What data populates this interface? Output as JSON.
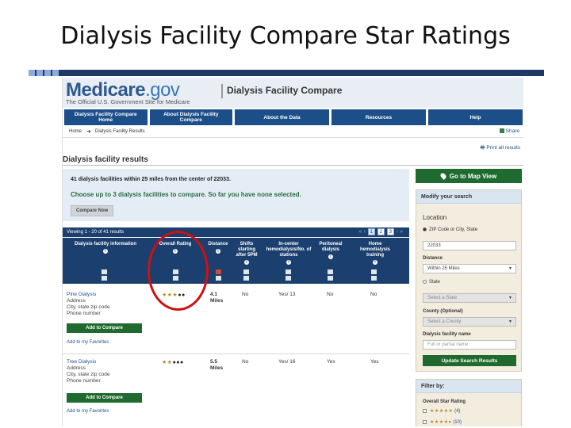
{
  "slide": {
    "title": "Dialysis Facility Compare Star Ratings"
  },
  "header": {
    "logo_main": "Medicare",
    "logo_gov": ".gov",
    "tagline": "The Official U.S. Government Site for Medicare",
    "app_title": "Dialysis Facility Compare"
  },
  "nav": [
    "Dialysis Facility Compare Home",
    "About Dialysis Facility Compare",
    "About the Data",
    "Resources",
    "Help"
  ],
  "breadcrumb": {
    "home": "Home",
    "arrow": "➜",
    "current": "Dialysis Facility Results",
    "share": "Share"
  },
  "print_label": "Print all results",
  "page_heading": "Dialysis facility results",
  "info": {
    "summary": "41 dialysis facilities within 25 miles from the center of 22033.",
    "choose": "Choose up to 3 dialysis facilities to compare. So far you have none selected.",
    "compare_now": "Compare Now"
  },
  "results_bar": {
    "viewing": "Viewing 1 - 20 of 41 results",
    "pages": [
      "1",
      "2",
      "3"
    ],
    "prev": "« ‹",
    "next": "› »"
  },
  "columns": [
    "Dialysis facility information",
    "Overall Rating",
    "Distance",
    "Shifts starting after 5PM",
    "In-center hemodialysis/No. of stations",
    "Peritoneal dialysis",
    "Home hemodialysis training"
  ],
  "facilities": [
    {
      "name": "Pine Dialysis",
      "address": "Address",
      "city": "City, state zip code",
      "phone": "Phone number",
      "stars_filled": "★★★",
      "stars_empty": "●●",
      "distance": "4.1 Miles",
      "shifts": "No",
      "incenter": "Yes/ 13",
      "peritoneal": "No",
      "home": "No",
      "add_label": "Add to Compare",
      "fav_label": "Add to my Favorites"
    },
    {
      "name": "Tree Dialysis",
      "address": "Address",
      "city": "City, state zip code",
      "phone": "Phone number",
      "stars_filled": "★★",
      "stars_empty": "●●●",
      "distance": "5.5 Miles",
      "shifts": "No",
      "incenter": "Yes/ 16",
      "peritoneal": "Yes",
      "home": "Yes",
      "add_label": "Add to Compare",
      "fav_label": "Add to my Favorites"
    }
  ],
  "sidebar": {
    "map_button": "Go to Map View",
    "modify_heading": "Modify your search",
    "location_label": "Location",
    "zip_radio": "ZIP Code or City, State",
    "zip_value": "22033",
    "distance_label": "Distance",
    "distance_value": "Within 25 Miles",
    "state_radio": "State",
    "state_placeholder": "Select a State",
    "county_label": "County (Optional)",
    "county_placeholder": "Select a County",
    "name_label": "Dialysis facility name",
    "name_placeholder": "Full or partial name",
    "update_button": "Update Search Results",
    "filter_heading": "Filter by:",
    "filter_rating_label": "Overall Star Rating",
    "filters": [
      {
        "stars": "★★★★★",
        "count": "(4)"
      },
      {
        "stars": "★★★★●",
        "count": "(10)"
      }
    ]
  },
  "colors": {
    "navy": "#1b3f6e",
    "nav_blue": "#1c4f8a",
    "green": "#1f6a2e",
    "highlight_ring": "#d01010",
    "star_gold": "#b58a2a"
  }
}
